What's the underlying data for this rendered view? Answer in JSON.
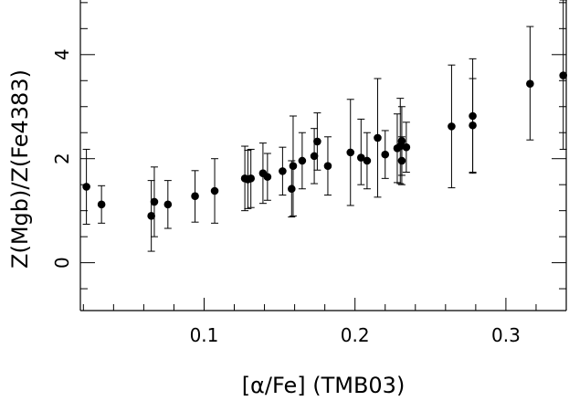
{
  "chart_data": {
    "type": "scatter",
    "xlabel": "[α/Fe] (TMB03)",
    "ylabel": "Z(Mgb)/Z(Fe4383)",
    "xlim": [
      0.018,
      0.34
    ],
    "ylim": [
      -0.92,
      5.05
    ],
    "xticks": [
      0.1,
      0.2,
      0.3
    ],
    "xtick_labels": [
      "0.1",
      "0.2",
      "0.3"
    ],
    "yticks": [
      0,
      2,
      4
    ],
    "ytick_labels": [
      "0",
      "2",
      "4"
    ],
    "grid": false,
    "points": [
      {
        "x": 0.022,
        "y": 1.46,
        "ylo": 0.74,
        "yhi": 2.18
      },
      {
        "x": 0.032,
        "y": 1.12,
        "ylo": 0.76,
        "yhi": 1.48
      },
      {
        "x": 0.065,
        "y": 0.9,
        "ylo": 0.22,
        "yhi": 1.58
      },
      {
        "x": 0.067,
        "y": 1.17,
        "ylo": 0.5,
        "yhi": 1.84
      },
      {
        "x": 0.076,
        "y": 1.12,
        "ylo": 0.66,
        "yhi": 1.58
      },
      {
        "x": 0.094,
        "y": 1.28,
        "ylo": 0.78,
        "yhi": 1.77
      },
      {
        "x": 0.107,
        "y": 1.38,
        "ylo": 0.76,
        "yhi": 2.0
      },
      {
        "x": 0.127,
        "y": 1.62,
        "ylo": 1.0,
        "yhi": 2.24
      },
      {
        "x": 0.129,
        "y": 1.6,
        "ylo": 1.04,
        "yhi": 2.16
      },
      {
        "x": 0.131,
        "y": 1.62,
        "ylo": 1.06,
        "yhi": 2.18
      },
      {
        "x": 0.139,
        "y": 1.72,
        "ylo": 1.14,
        "yhi": 2.3
      },
      {
        "x": 0.142,
        "y": 1.65,
        "ylo": 1.2,
        "yhi": 2.1
      },
      {
        "x": 0.152,
        "y": 1.76,
        "ylo": 1.3,
        "yhi": 2.22
      },
      {
        "x": 0.158,
        "y": 1.42,
        "ylo": 0.88,
        "yhi": 1.96
      },
      {
        "x": 0.159,
        "y": 1.86,
        "ylo": 0.9,
        "yhi": 2.82
      },
      {
        "x": 0.165,
        "y": 1.96,
        "ylo": 1.42,
        "yhi": 2.5
      },
      {
        "x": 0.173,
        "y": 2.05,
        "ylo": 1.52,
        "yhi": 2.58
      },
      {
        "x": 0.175,
        "y": 2.33,
        "ylo": 1.78,
        "yhi": 2.88
      },
      {
        "x": 0.182,
        "y": 1.86,
        "ylo": 1.3,
        "yhi": 2.42
      },
      {
        "x": 0.197,
        "y": 2.12,
        "ylo": 1.1,
        "yhi": 3.14
      },
      {
        "x": 0.204,
        "y": 2.02,
        "ylo": 1.5,
        "yhi": 2.76
      },
      {
        "x": 0.208,
        "y": 1.96,
        "ylo": 1.42,
        "yhi": 2.5
      },
      {
        "x": 0.215,
        "y": 2.4,
        "ylo": 1.26,
        "yhi": 3.54
      },
      {
        "x": 0.22,
        "y": 2.08,
        "ylo": 1.62,
        "yhi": 2.54
      },
      {
        "x": 0.228,
        "y": 2.2,
        "ylo": 1.54,
        "yhi": 2.86
      },
      {
        "x": 0.23,
        "y": 2.24,
        "ylo": 1.52,
        "yhi": 3.16
      },
      {
        "x": 0.231,
        "y": 2.34,
        "ylo": 1.68,
        "yhi": 3.0
      },
      {
        "x": 0.231,
        "y": 1.96,
        "ylo": 1.5,
        "yhi": 2.42
      },
      {
        "x": 0.234,
        "y": 2.22,
        "ylo": 1.74,
        "yhi": 2.7
      },
      {
        "x": 0.264,
        "y": 2.62,
        "ylo": 1.44,
        "yhi": 3.8
      },
      {
        "x": 0.278,
        "y": 2.64,
        "ylo": 1.74,
        "yhi": 3.54
      },
      {
        "x": 0.278,
        "y": 2.82,
        "ylo": 1.72,
        "yhi": 3.92
      },
      {
        "x": 0.316,
        "y": 3.44,
        "ylo": 2.36,
        "yhi": 4.54
      },
      {
        "x": 0.338,
        "y": 3.6,
        "ylo": 2.18,
        "yhi": 5.05
      }
    ]
  }
}
